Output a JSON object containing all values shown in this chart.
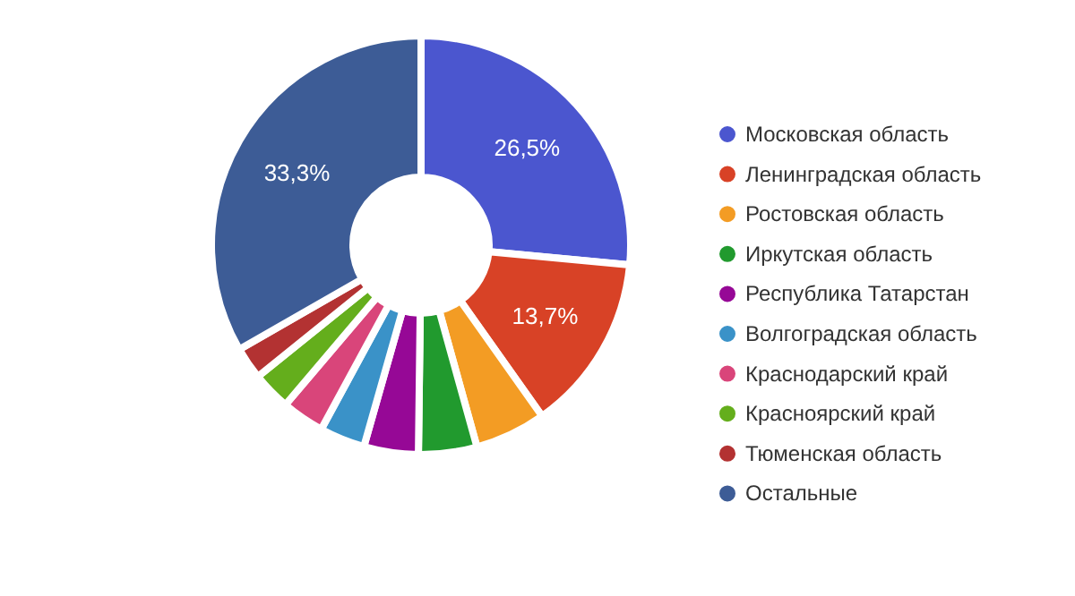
{
  "chart_data": {
    "type": "donut",
    "categories": [
      "Московская область",
      "Ленинградская область",
      "Ростовская область",
      "Иркутская область",
      "Республика Татарстан",
      "Волгоградская область",
      "Краснодарский край",
      "Красноярский край",
      "Тюменская область",
      "Остальные"
    ],
    "values": [
      26.5,
      13.7,
      5.5,
      4.5,
      4.2,
      3.5,
      3.3,
      3.0,
      2.5,
      33.3
    ],
    "colors": [
      "#4b56cf",
      "#d84226",
      "#f39c24",
      "#219a2e",
      "#960896",
      "#3a92c8",
      "#d9457a",
      "#64ae1c",
      "#b33232",
      "#3d5c96"
    ],
    "value_labels": [
      "26,5%",
      "13,7%",
      null,
      null,
      null,
      null,
      null,
      null,
      null,
      "33,3%"
    ],
    "legend": "right"
  }
}
